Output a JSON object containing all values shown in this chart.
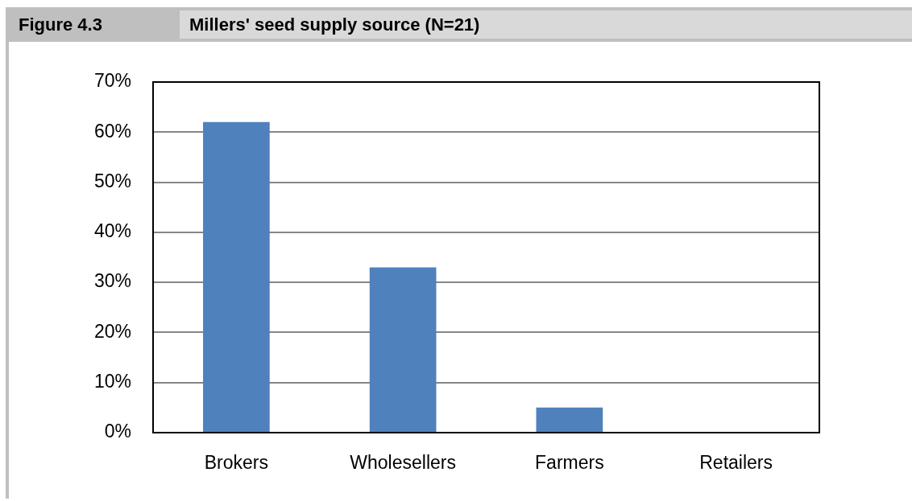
{
  "chart_data": {
    "type": "bar",
    "title": "Millers' seed supply source (N=21)",
    "annotations": [
      "Figure 4.3"
    ],
    "categories": [
      "Brokers",
      "Wholesellers",
      "Farmers",
      "Retailers"
    ],
    "values": [
      62,
      33,
      5,
      0
    ],
    "color": "#4f81bd",
    "ylim": [
      0,
      70
    ],
    "yticks": [
      {
        "value": 0,
        "label": "0%"
      },
      {
        "value": 10,
        "label": "10%"
      },
      {
        "value": 20,
        "label": "20%"
      },
      {
        "value": 30,
        "label": "30%"
      },
      {
        "value": 40,
        "label": "40%"
      },
      {
        "value": 50,
        "label": "50%"
      },
      {
        "value": 60,
        "label": "60%"
      },
      {
        "value": 70,
        "label": "70%"
      }
    ],
    "grid": "y"
  }
}
